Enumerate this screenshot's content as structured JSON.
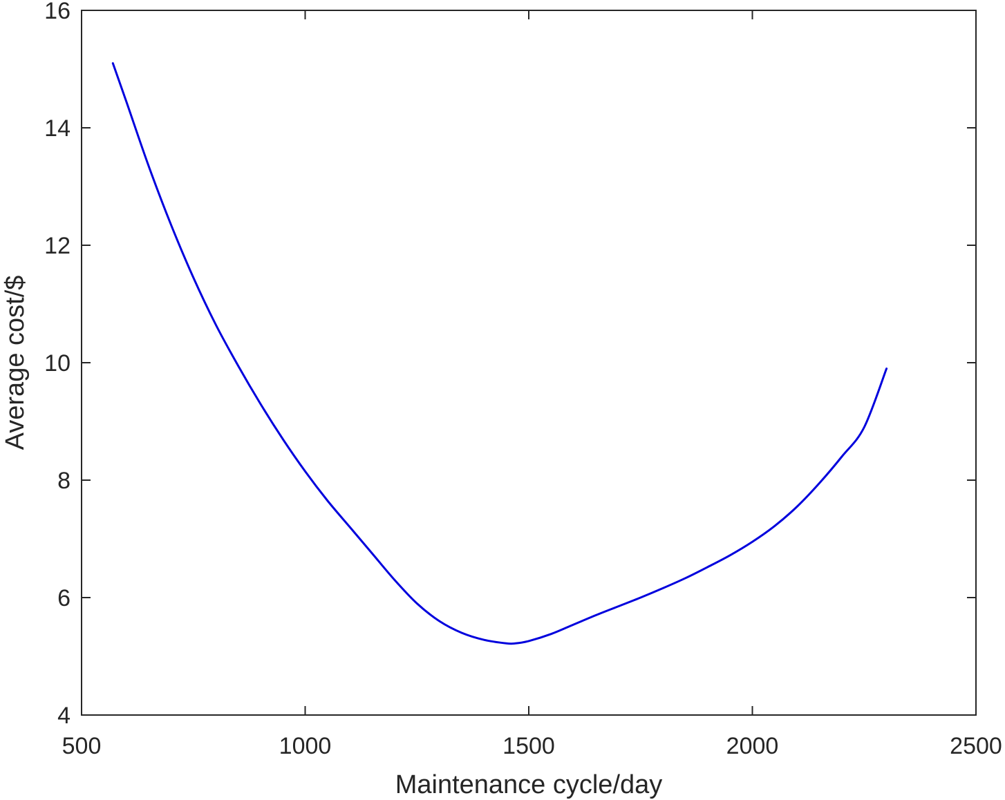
{
  "chart_data": {
    "type": "line",
    "title": "",
    "xlabel": "Maintenance cycle/day",
    "ylabel": "Average cost/$",
    "xlim": [
      500,
      2500
    ],
    "ylim": [
      4,
      16
    ],
    "xticks": [
      500,
      1000,
      1500,
      2000,
      2500
    ],
    "yticks": [
      4,
      6,
      8,
      10,
      12,
      14,
      16
    ],
    "grid": false,
    "legend": "none",
    "series": [
      {
        "color": "#0000dd",
        "x": [
          570,
          600,
          650,
          700,
          750,
          800,
          850,
          900,
          950,
          1000,
          1050,
          1100,
          1150,
          1200,
          1250,
          1300,
          1350,
          1400,
          1450,
          1470,
          1500,
          1550,
          1600,
          1650,
          1700,
          1750,
          1800,
          1850,
          1900,
          1950,
          2000,
          2050,
          2100,
          2150,
          2200,
          2250,
          2300
        ],
        "y": [
          15.1,
          14.45,
          13.35,
          12.35,
          11.45,
          10.65,
          9.95,
          9.3,
          8.7,
          8.15,
          7.65,
          7.2,
          6.75,
          6.3,
          5.9,
          5.6,
          5.4,
          5.28,
          5.22,
          5.22,
          5.26,
          5.38,
          5.54,
          5.7,
          5.85,
          6.0,
          6.16,
          6.33,
          6.52,
          6.72,
          6.95,
          7.22,
          7.55,
          7.95,
          8.4,
          8.9,
          9.9
        ]
      }
    ]
  }
}
